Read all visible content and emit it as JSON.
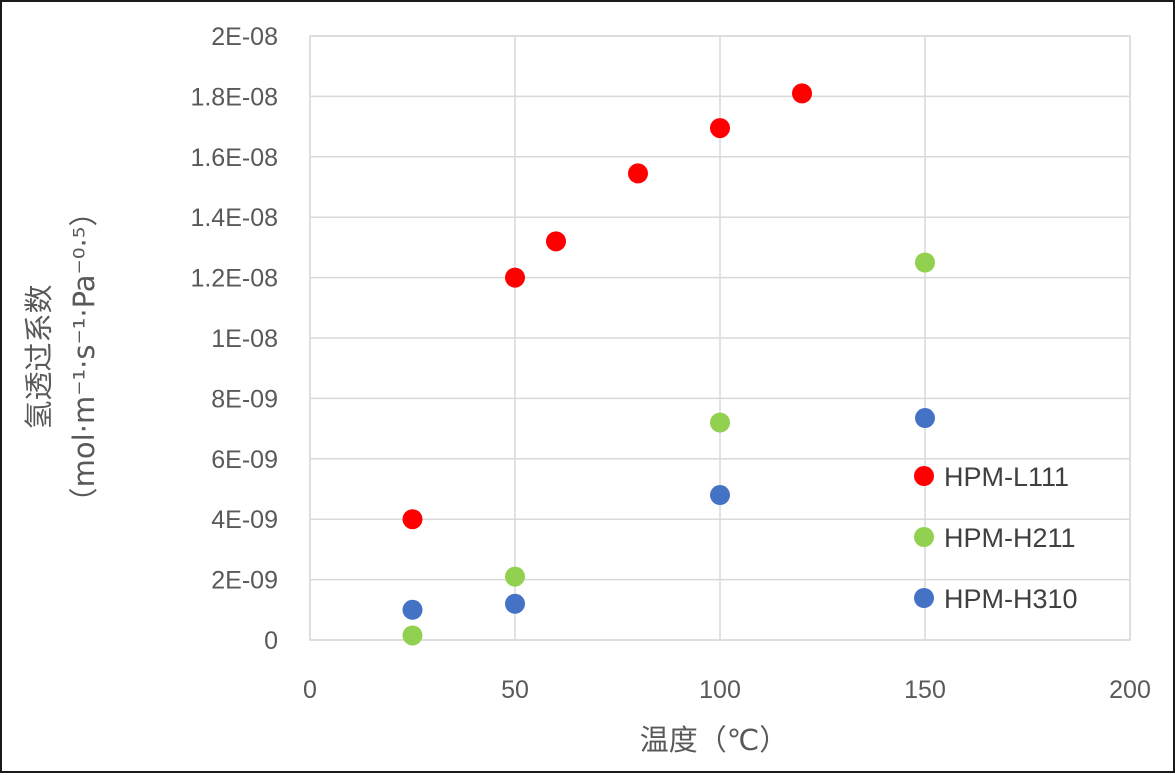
{
  "chart_data": {
    "type": "scatter",
    "xlabel": "温度（℃）",
    "ylabel_main": "氢透过系数",
    "ylabel_unit": "（mol·m⁻¹·s⁻¹·Pa⁻⁰·⁵）",
    "xlim": [
      0,
      200
    ],
    "ylim": [
      0,
      2e-08
    ],
    "x_ticks": [
      0,
      50,
      100,
      150,
      200
    ],
    "x_tick_labels": [
      "0",
      "50",
      "100",
      "150",
      "200"
    ],
    "y_ticks": [
      0,
      2e-09,
      4e-09,
      6e-09,
      8e-09,
      1e-08,
      1.2e-08,
      1.4e-08,
      1.6e-08,
      1.8e-08,
      2e-08
    ],
    "y_tick_labels": [
      "0",
      "2E-09",
      "4E-09",
      "6E-09",
      "8E-09",
      "1E-08",
      "1.2E-08",
      "1.4E-08",
      "1.6E-08",
      "1.8E-08",
      "2E-08"
    ],
    "grid": {
      "x": true,
      "y": true
    },
    "legend_position": "right",
    "series": [
      {
        "name": "HPM-L111",
        "color": "#ff0000",
        "points": [
          [
            25,
            4e-09
          ],
          [
            50,
            1.2e-08
          ],
          [
            60,
            1.32e-08
          ],
          [
            80,
            1.545e-08
          ],
          [
            100,
            1.695e-08
          ],
          [
            120,
            1.81e-08
          ]
        ]
      },
      {
        "name": "HPM-H211",
        "color": "#92d050",
        "points": [
          [
            25,
            1.5e-10
          ],
          [
            50,
            2.1e-09
          ],
          [
            100,
            7.2e-09
          ],
          [
            150,
            1.25e-08
          ]
        ]
      },
      {
        "name": "HPM-H310",
        "color": "#4472c4",
        "points": [
          [
            25,
            1e-09
          ],
          [
            50,
            1.2e-09
          ],
          [
            100,
            4.8e-09
          ],
          [
            150,
            7.35e-09
          ]
        ]
      }
    ]
  }
}
